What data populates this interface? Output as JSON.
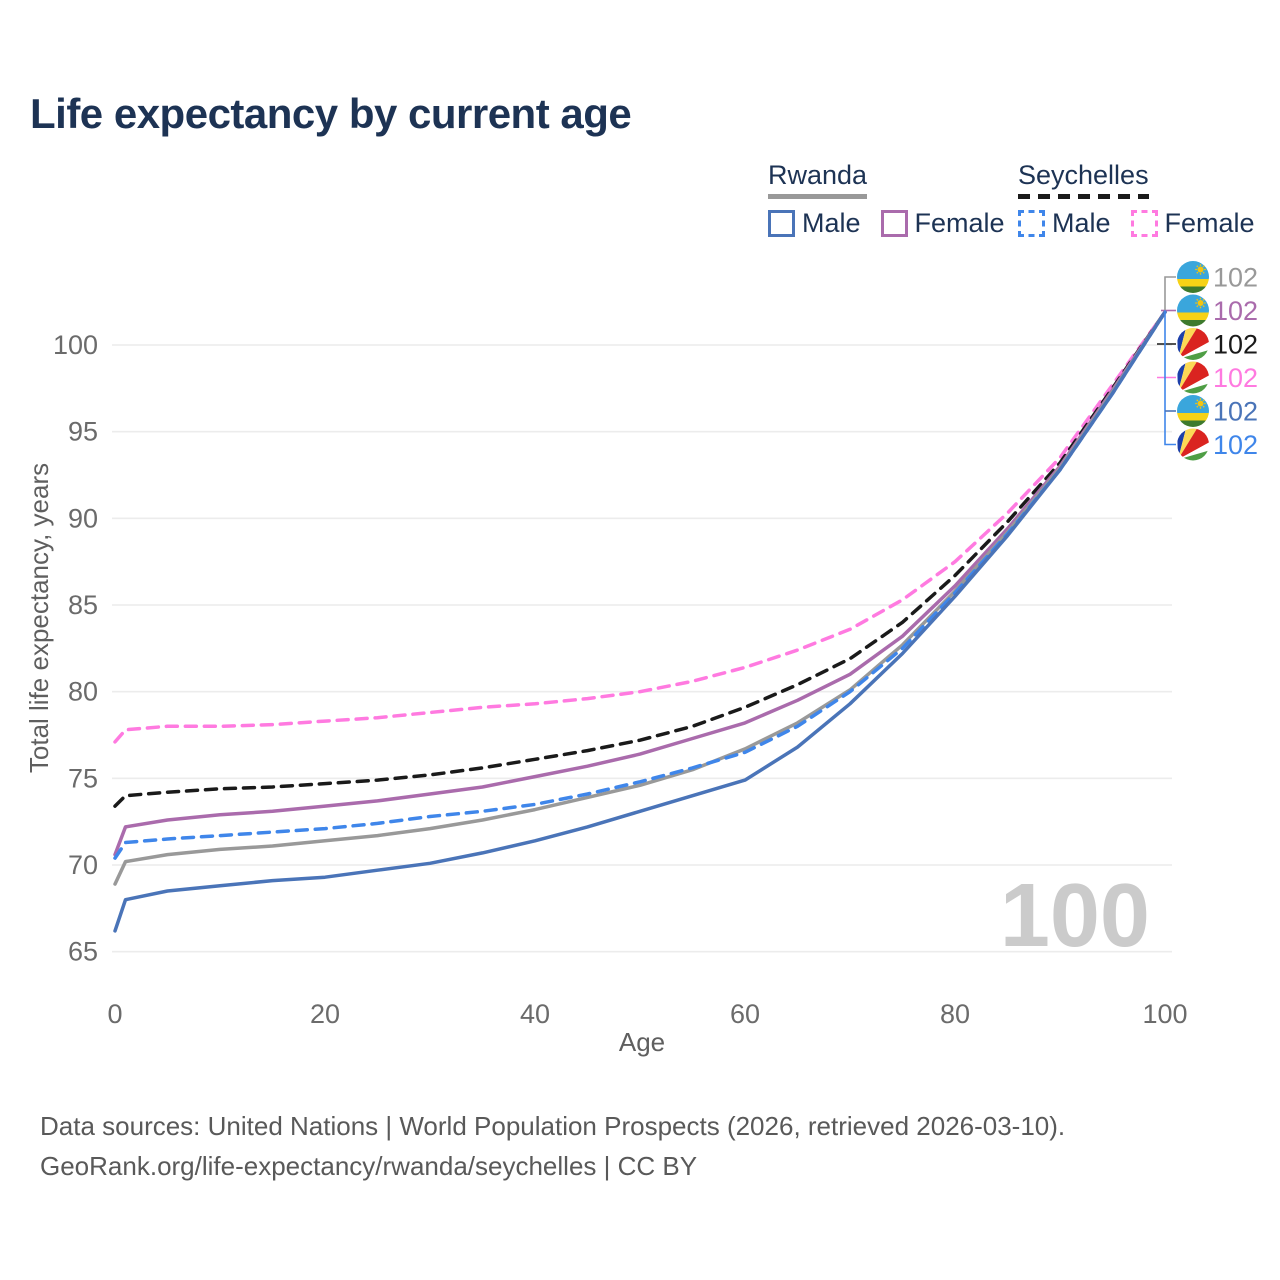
{
  "title": "Life expectancy by current age",
  "watermark": "100",
  "legend": {
    "groups": [
      {
        "label": "Rwanda",
        "key": "rwanda_total",
        "items": [
          {
            "label": "Male",
            "key": "rwanda_male"
          },
          {
            "label": "Female",
            "key": "rwanda_female"
          }
        ]
      },
      {
        "label": "Seychelles",
        "key": "seychelles_total",
        "items": [
          {
            "label": "Male",
            "key": "seychelles_male"
          },
          {
            "label": "Female",
            "key": "seychelles_female"
          }
        ]
      }
    ]
  },
  "footer": {
    "line1": "Data sources: United Nations | World Population Prospects (2026, retrieved 2026-03-10).",
    "line2": "GeoRank.org/life-expectancy/rwanda/seychelles | CC BY"
  },
  "chart_data": {
    "type": "line",
    "title": "Life expectancy by current age",
    "xlabel": "Age",
    "ylabel": "Total life expectancy, years",
    "xticks": [
      0,
      20,
      40,
      60,
      80,
      100
    ],
    "yticks": [
      65,
      70,
      75,
      80,
      85,
      90,
      95,
      100
    ],
    "xlim": [
      0,
      100
    ],
    "ylim": [
      63.5,
      103.5
    ],
    "grid": "horizontal",
    "legend_position": "top-right",
    "hovered_age_watermark": "100",
    "x": [
      0,
      1,
      5,
      10,
      15,
      20,
      25,
      30,
      35,
      40,
      45,
      50,
      55,
      60,
      65,
      70,
      75,
      80,
      85,
      90,
      95,
      100
    ],
    "series": [
      {
        "key": "seychelles_female",
        "name": "Seychelles Female",
        "country_key": "seychelles",
        "sex": "female",
        "color": "#ff7ae0",
        "dash": true,
        "row": 3,
        "end_label": "102",
        "values": [
          77.1,
          77.8,
          78.0,
          78.0,
          78.1,
          78.3,
          78.5,
          78.8,
          79.1,
          79.3,
          79.6,
          80.0,
          80.6,
          81.4,
          82.4,
          83.6,
          85.3,
          87.5,
          90.3,
          93.5,
          97.7,
          101.9
        ]
      },
      {
        "key": "seychelles_total",
        "name": "Seychelles (both sexes)",
        "country_key": "seychelles",
        "sex": "both",
        "color": "#1a1a1a",
        "dash": true,
        "row": 2,
        "end_label": "102",
        "values": [
          73.4,
          74.0,
          74.2,
          74.4,
          74.5,
          74.7,
          74.9,
          75.2,
          75.6,
          76.1,
          76.6,
          77.2,
          78.0,
          79.1,
          80.4,
          81.9,
          84.0,
          86.7,
          89.8,
          93.2,
          97.5,
          101.9
        ]
      },
      {
        "key": "rwanda_female",
        "name": "Rwanda Female",
        "country_key": "rwanda",
        "sex": "female",
        "color": "#aa6bac",
        "dash": false,
        "row": 1,
        "end_label": "102",
        "values": [
          70.6,
          72.2,
          72.6,
          72.9,
          73.1,
          73.4,
          73.7,
          74.1,
          74.5,
          75.1,
          75.7,
          76.4,
          77.3,
          78.2,
          79.5,
          81.0,
          83.2,
          86.1,
          89.4,
          93.0,
          97.4,
          101.9
        ]
      },
      {
        "key": "rwanda_total",
        "name": "Rwanda (both sexes)",
        "country_key": "rwanda",
        "sex": "both",
        "color": "#999999",
        "dash": false,
        "row": 0,
        "end_label": "102",
        "values": [
          68.9,
          70.2,
          70.6,
          70.9,
          71.1,
          71.4,
          71.7,
          72.1,
          72.6,
          73.2,
          73.9,
          74.6,
          75.5,
          76.7,
          78.2,
          80.1,
          82.7,
          85.8,
          89.2,
          92.9,
          97.3,
          101.9
        ]
      },
      {
        "key": "seychelles_male",
        "name": "Seychelles Male",
        "country_key": "seychelles",
        "sex": "male",
        "color": "#3f86ea",
        "dash": true,
        "row": 5,
        "end_label": "102",
        "values": [
          70.4,
          71.3,
          71.5,
          71.7,
          71.9,
          72.1,
          72.4,
          72.8,
          73.1,
          73.5,
          74.1,
          74.8,
          75.6,
          76.5,
          78.0,
          80.0,
          82.5,
          85.7,
          89.1,
          92.8,
          97.2,
          101.9
        ]
      },
      {
        "key": "rwanda_male",
        "name": "Rwanda Male",
        "country_key": "rwanda",
        "sex": "male",
        "color": "#4a74b8",
        "dash": false,
        "row": 4,
        "end_label": "102",
        "values": [
          66.2,
          68.0,
          68.5,
          68.8,
          69.1,
          69.3,
          69.7,
          70.1,
          70.7,
          71.4,
          72.2,
          73.1,
          74.0,
          74.9,
          76.8,
          79.3,
          82.2,
          85.5,
          89.0,
          92.8,
          97.2,
          101.9
        ]
      }
    ],
    "colors": {
      "grid": "#ececec",
      "tick_label": "#6b6b6b",
      "axis_label": "#5f5f5f",
      "watermark": "#cbcbcb",
      "title": "#1d3354",
      "footer": "#595959",
      "rwanda_flag_blue": "#3aa6dc",
      "rwanda_flag_yellow": "#f6d216",
      "rwanda_flag_green": "#3e7a2d",
      "rwanda_flag_sun": "#f3c40f",
      "seychelles_flag_blue": "#1c3faa",
      "seychelles_flag_yellow": "#fcd955",
      "seychelles_flag_red": "#da2420",
      "seychelles_flag_white": "#ffffff",
      "seychelles_flag_green": "#4f9e45"
    }
  }
}
